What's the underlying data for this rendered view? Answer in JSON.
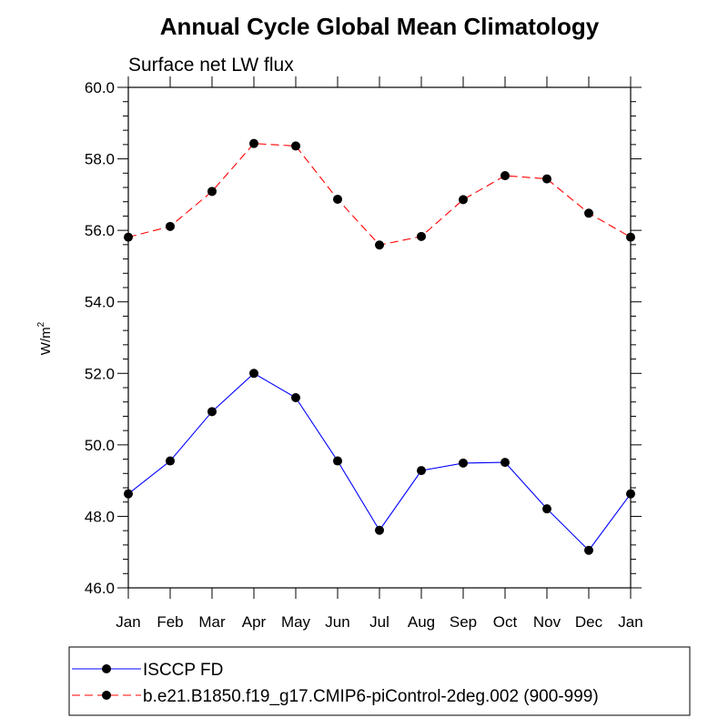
{
  "chart_data": {
    "type": "line",
    "title": "Annual Cycle Global Mean Climatology",
    "subtitle": "Surface net LW flux",
    "ylabel": "W/m",
    "ylabel_superscript": "2",
    "xlabel": "",
    "categories": [
      "Jan",
      "Feb",
      "Mar",
      "Apr",
      "May",
      "Jun",
      "Jul",
      "Aug",
      "Sep",
      "Oct",
      "Nov",
      "Dec",
      "Jan"
    ],
    "ylim": [
      46.0,
      60.0
    ],
    "yticks": [
      "46.0",
      "48.0",
      "50.0",
      "52.0",
      "54.0",
      "56.0",
      "58.0",
      "60.0"
    ],
    "grid": false,
    "legend_position": "bottom",
    "series": [
      {
        "name": "ISCCP FD",
        "color": "#0000ff",
        "dash": "solid",
        "marker": "filled-circle",
        "values": [
          48.63,
          49.55,
          50.93,
          52.0,
          51.32,
          49.55,
          47.61,
          49.28,
          49.49,
          49.51,
          48.21,
          47.05,
          48.63
        ]
      },
      {
        "name": "b.e21.B1850.f19_g17.CMIP6-piControl-2deg.002 (900-999)",
        "color": "#ff0000",
        "dash": "dashed",
        "marker": "filled-circle",
        "values": [
          55.81,
          56.11,
          57.09,
          58.43,
          58.36,
          56.87,
          55.59,
          55.83,
          56.86,
          57.53,
          57.44,
          56.48,
          55.81
        ]
      }
    ]
  }
}
